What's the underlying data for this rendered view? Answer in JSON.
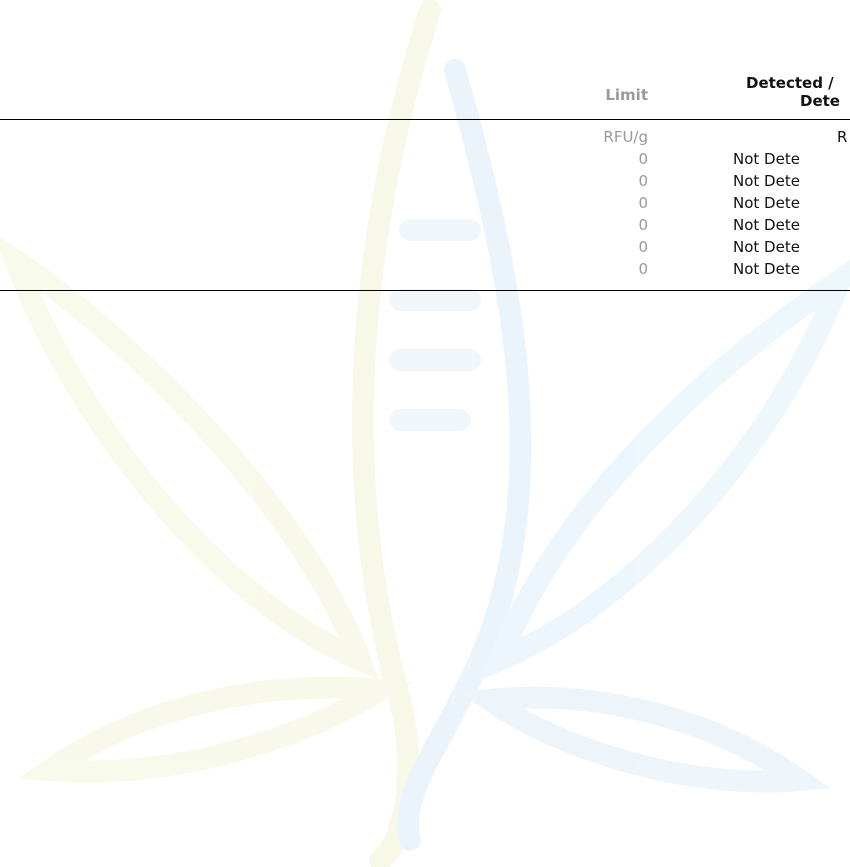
{
  "table": {
    "header": {
      "limit": "Limit",
      "result_line1": "Detected /",
      "result_line2": "Dete"
    },
    "rows": [
      [
        "RFU/g",
        "R"
      ],
      [
        "0",
        "Not Dete"
      ],
      [
        "0",
        "Not Dete"
      ],
      [
        "0",
        "Not Dete"
      ],
      [
        "0",
        "Not Dete"
      ],
      [
        "0",
        "Not Dete"
      ],
      [
        "0",
        "Not Dete"
      ]
    ]
  }
}
